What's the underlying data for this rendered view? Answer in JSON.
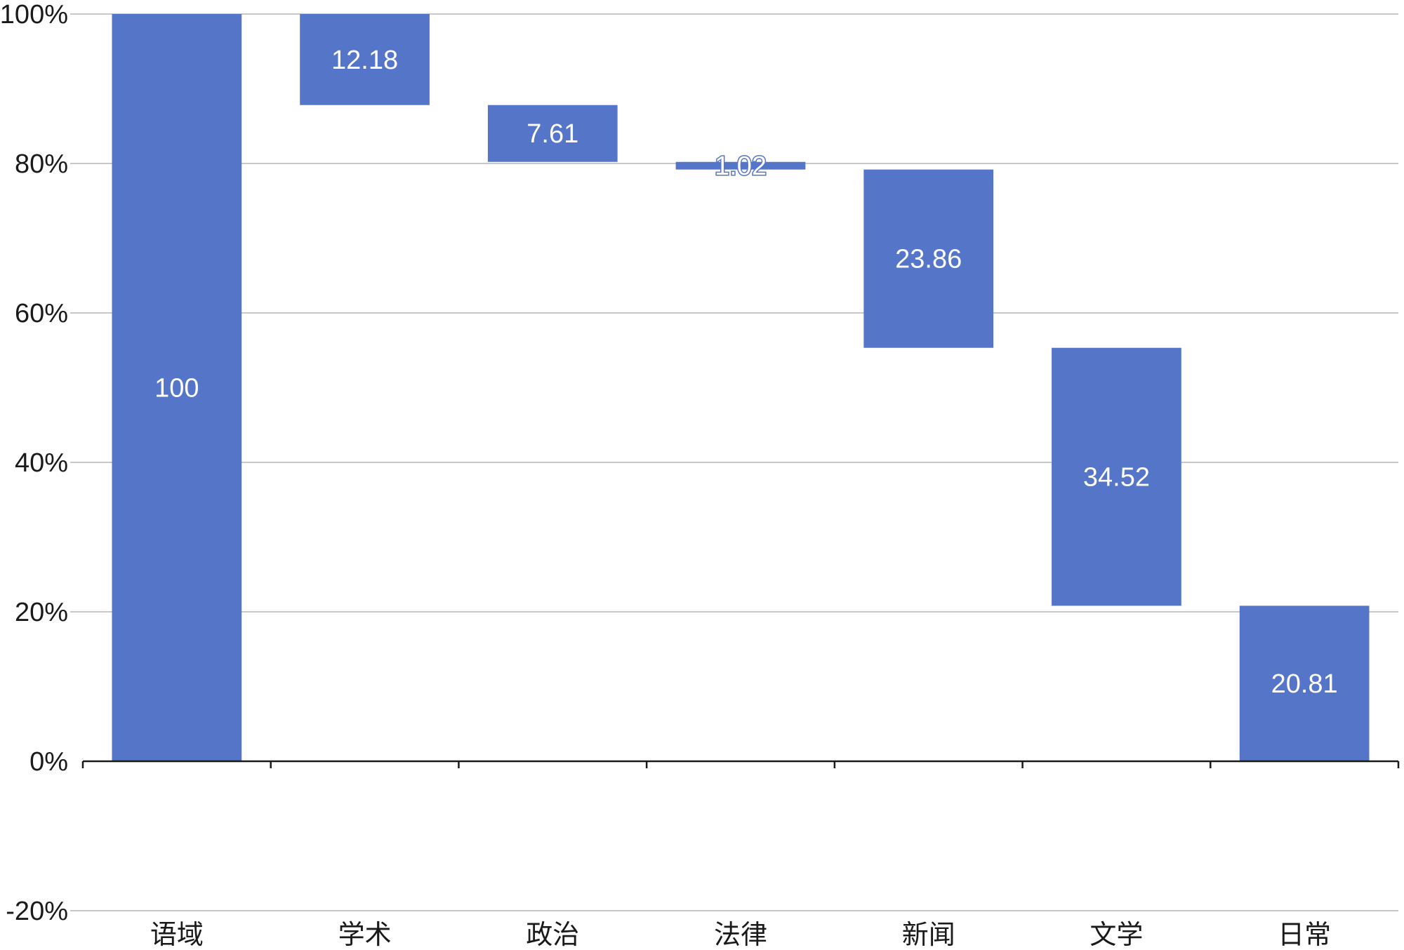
{
  "chart_data": {
    "type": "waterfall",
    "categories": [
      "语域",
      "学术",
      "政治",
      "法律",
      "新闻",
      "文学",
      "日常"
    ],
    "values": [
      100,
      12.18,
      7.61,
      1.02,
      23.86,
      34.52,
      20.81
    ],
    "value_labels": [
      "100",
      "12.18",
      "7.61",
      "1.02",
      "23.86",
      "34.52",
      "20.81"
    ],
    "ylim": [
      -20,
      100
    ],
    "yticks": [
      -20,
      0,
      20,
      40,
      60,
      80,
      100
    ],
    "ytick_labels": [
      "-20%",
      "0%",
      "20%",
      "40%",
      "60%",
      "80%",
      "100%"
    ],
    "grid": true,
    "bar_color": "#5575c8"
  }
}
